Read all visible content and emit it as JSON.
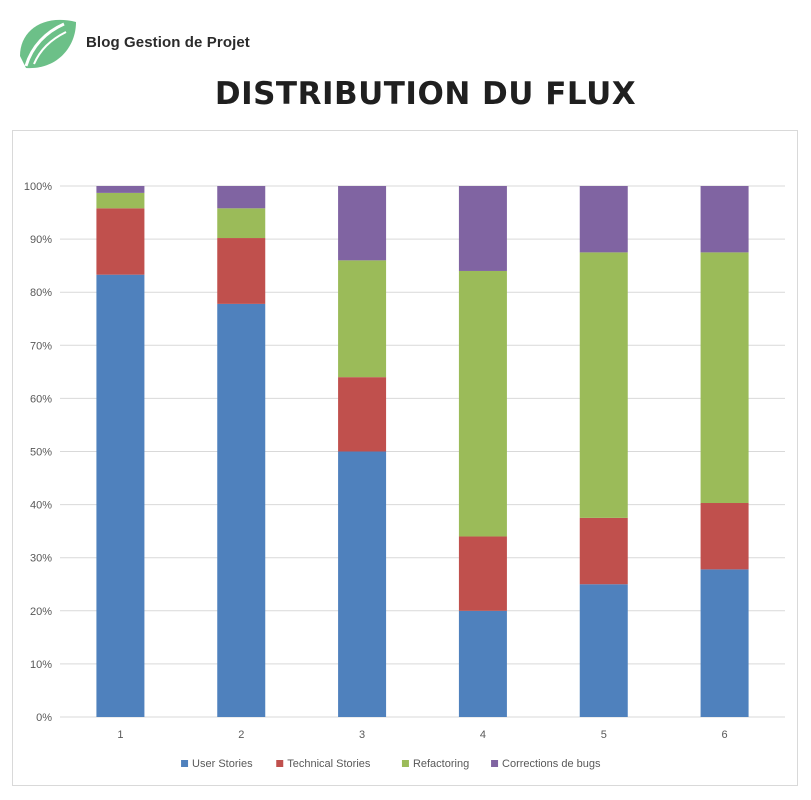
{
  "header": {
    "logo_text": "Blog Gestion de Projet",
    "title": "DISTRIBUTION DU FLUX"
  },
  "colors": {
    "brand_green": "#6cc088",
    "user_stories": "#4f81bd",
    "technical_stories": "#c0504d",
    "refactoring": "#9bbb59",
    "bugs": "#8064a2"
  },
  "chart_data": {
    "type": "bar",
    "stacked": true,
    "percent": true,
    "categories": [
      "1",
      "2",
      "3",
      "4",
      "5",
      "6"
    ],
    "series": [
      {
        "name": "User Stories",
        "color": "#4f81bd",
        "values": [
          83.3,
          77.8,
          50,
          20,
          25,
          27.8
        ]
      },
      {
        "name": "Technical Stories",
        "color": "#c0504d",
        "values": [
          12.5,
          12.4,
          14,
          14,
          12.5,
          12.5
        ]
      },
      {
        "name": "Refactoring",
        "color": "#9bbb59",
        "values": [
          2.9,
          5.6,
          22,
          50,
          50,
          47.2
        ]
      },
      {
        "name": "Corrections de bugs",
        "color": "#8064a2",
        "values": [
          1.3,
          4.2,
          14,
          16,
          12.5,
          12.5
        ]
      }
    ],
    "yticks": [
      "0%",
      "10%",
      "20%",
      "30%",
      "40%",
      "50%",
      "60%",
      "70%",
      "80%",
      "90%",
      "100%"
    ],
    "ylim": [
      0,
      100
    ],
    "grid": true,
    "legend": "bottom"
  }
}
